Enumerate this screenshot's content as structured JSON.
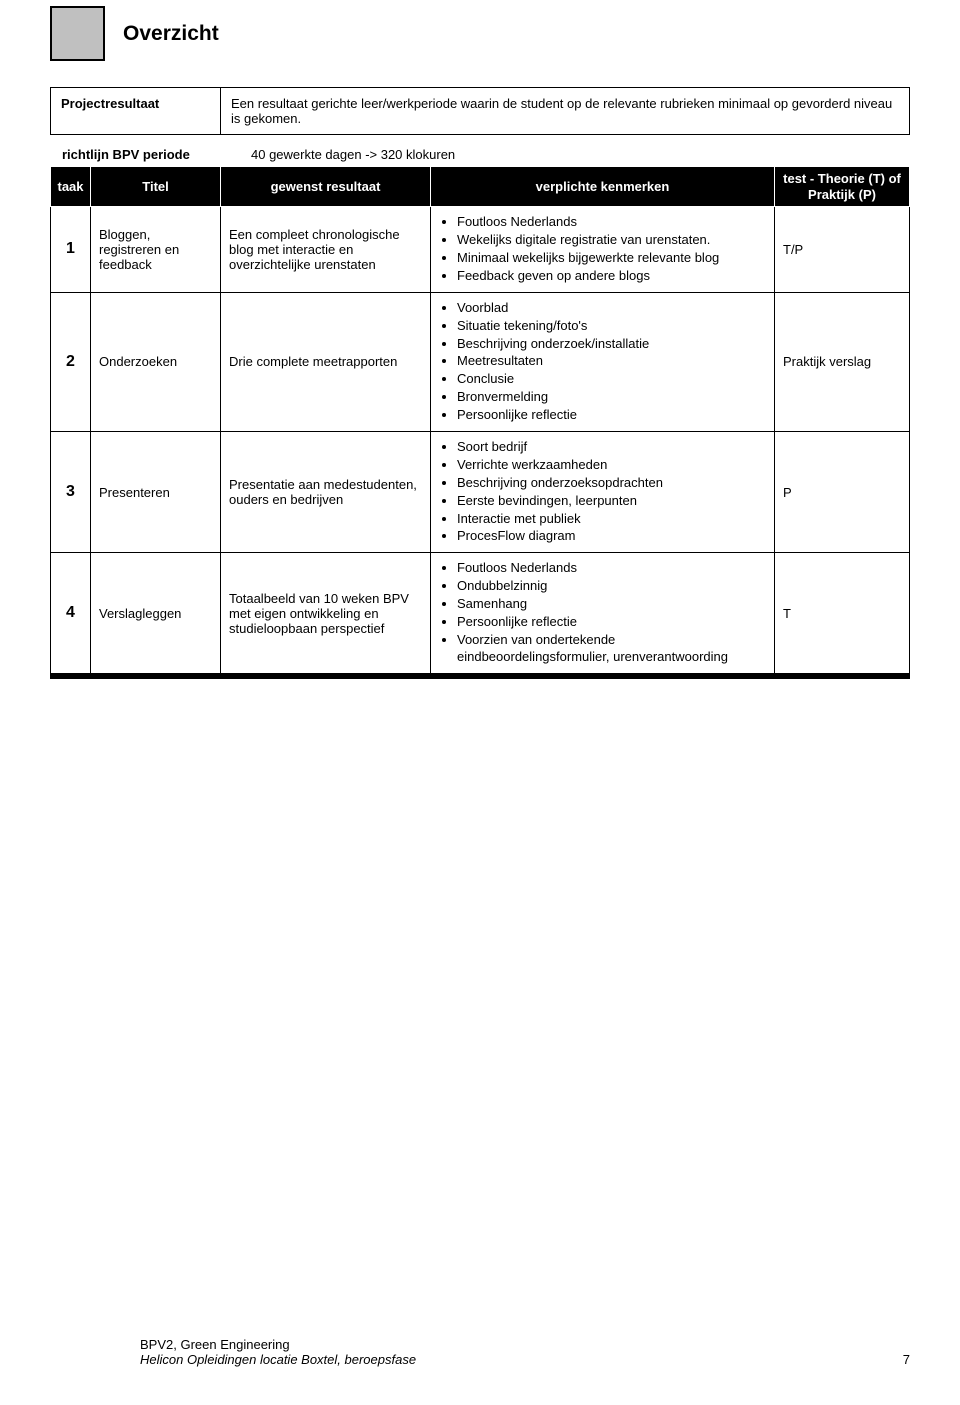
{
  "header": {
    "title": "Overzicht"
  },
  "intro": {
    "label": "Projectresultaat",
    "text": "Een resultaat gerichte leer/werkperiode waarin de student op de relevante rubrieken minimaal op gevorderd niveau is gekomen."
  },
  "richtlijn": {
    "label": "richtlijn BPV periode",
    "value": "40 gewerkte dagen -> 320 klokuren"
  },
  "table": {
    "headers": {
      "taak": "taak",
      "titel": "Titel",
      "gewenst": "gewenst resultaat",
      "verplichte": "verplichte kenmerken",
      "test": "test - Theorie (T) of Praktijk (P)"
    },
    "rows": [
      {
        "num": "1",
        "titel": "Bloggen, registreren en feedback",
        "gewenst": "Een compleet chronologische blog met interactie en overzichtelijke urenstaten",
        "kenmerken": [
          "Foutloos Nederlands",
          "Wekelijks digitale registratie van urenstaten.",
          "Minimaal wekelijks bijgewerkte relevante blog",
          "Feedback geven op andere blogs"
        ],
        "test": "T/P"
      },
      {
        "num": "2",
        "titel": "Onderzoeken",
        "gewenst": "Drie complete meetrapporten",
        "kenmerken": [
          "Voorblad",
          "Situatie tekening/foto's",
          "Beschrijving onderzoek/installatie",
          "Meetresultaten",
          "Conclusie",
          "Bronvermelding",
          "Persoonlijke reflectie"
        ],
        "test": "Praktijk verslag"
      },
      {
        "num": "3",
        "titel": "Presenteren",
        "gewenst": "Presentatie aan medestudenten, ouders en bedrijven",
        "kenmerken": [
          "Soort bedrijf",
          "Verrichte werkzaamheden",
          "Beschrijving onderzoeksopdrachten",
          "Eerste bevindingen, leerpunten",
          "Interactie met publiek",
          "ProcesFlow diagram"
        ],
        "test": "P"
      },
      {
        "num": "4",
        "titel": "Verslagleggen",
        "gewenst": "Totaalbeeld van 10 weken BPV met eigen ontwikkeling en studieloopbaan perspectief",
        "kenmerken": [
          "Foutloos Nederlands",
          "Ondubbelzinnig",
          "Samenhang",
          "Persoonlijke reflectie",
          "Voorzien van ondertekende eindbeoordelingsformulier, urenverantwoording"
        ],
        "test": "T"
      }
    ]
  },
  "footer": {
    "line1": "BPV2, Green Engineering",
    "line2": "Helicon Opleidingen locatie Boxtel, beroepsfase",
    "page": "7"
  }
}
